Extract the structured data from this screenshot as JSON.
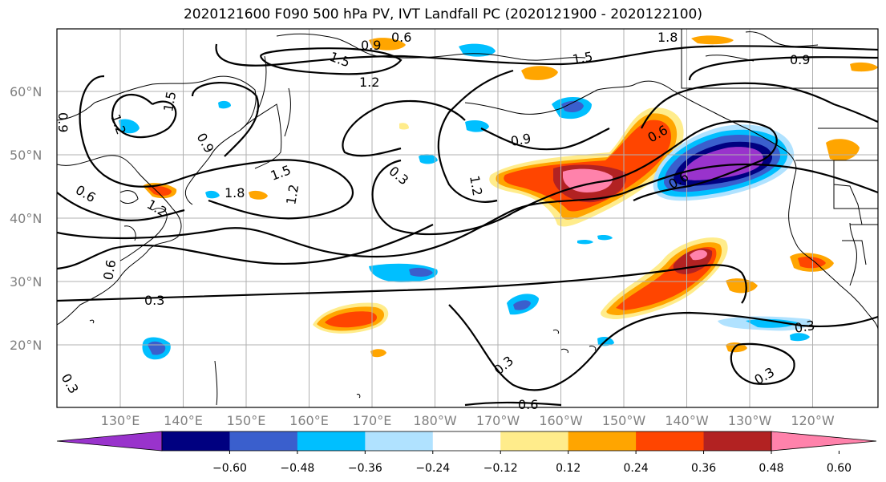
{
  "title": "2020121600 F090 500 hPa PV, IVT Landfall PC (2020121900 - 2020122100)",
  "map": {
    "lon_ticks": [
      "130°E",
      "140°E",
      "150°E",
      "160°E",
      "170°E",
      "180°W",
      "170°W",
      "160°W",
      "150°W",
      "140°W",
      "130°W",
      "120°W"
    ],
    "lat_ticks": [
      "60°N",
      "50°N",
      "40°N",
      "30°N",
      "20°N"
    ],
    "grid": true
  },
  "contour_labels": [
    "0.6",
    "0.9",
    "1.8",
    "1.5",
    "1.5",
    "1.2",
    "0.9",
    "1.2",
    "0.9",
    "1.5",
    "1.8",
    "1.5",
    "0.6",
    "1.2",
    "0.9",
    "0.6",
    "1.2",
    "0.3",
    "1.2",
    "0.6",
    "0.9",
    "0.6",
    "0.3",
    "0.3",
    "0.3",
    "0.3",
    "0.6",
    "0.3"
  ],
  "colorbar": {
    "colors": [
      "#9933cc",
      "#000080",
      "#3a5fcd",
      "#00bfff",
      "#b0e2ff",
      "#ffffff",
      "#ffec8b",
      "#ffa500",
      "#ff4500",
      "#b22222",
      "#ff82ab"
    ],
    "tick_labels": [
      "−0.60",
      "−0.48",
      "−0.36",
      "−0.24",
      "−0.12",
      "0.12",
      "0.24",
      "0.36",
      "0.48",
      "0.60"
    ]
  }
}
